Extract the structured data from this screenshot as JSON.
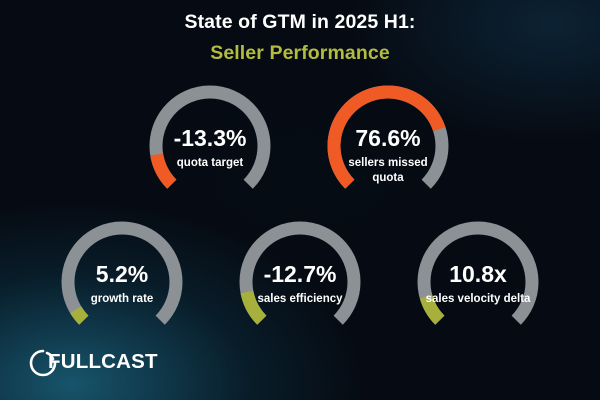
{
  "header": {
    "title": "State of GTM in 2025 H1:",
    "subtitle": "Seller Performance"
  },
  "colors": {
    "track": "#8c9196",
    "accent_orange": "#f05a24",
    "accent_olive": "#a6b03a",
    "subtitle": "#b3bc3e",
    "text": "#ffffff"
  },
  "gauges": [
    {
      "value": "-13.3%",
      "label": "quota target",
      "fill_fraction": 0.133,
      "fill_color": "#f05a24"
    },
    {
      "value": "76.6%",
      "label": "sellers missed quota",
      "fill_fraction": 0.766,
      "fill_color": "#f05a24"
    },
    {
      "value": "5.2%",
      "label": "growth rate",
      "fill_fraction": 0.052,
      "fill_color": "#a6b03a"
    },
    {
      "value": "-12.7%",
      "label": "sales efficiency",
      "fill_fraction": 0.127,
      "fill_color": "#a6b03a"
    },
    {
      "value": "10.8x",
      "label": "sales velocity delta",
      "fill_fraction": 0.108,
      "fill_color": "#a6b03a"
    }
  ],
  "logo": {
    "text": "FULLCAST",
    "icon": "fullcast-logo-icon"
  }
}
